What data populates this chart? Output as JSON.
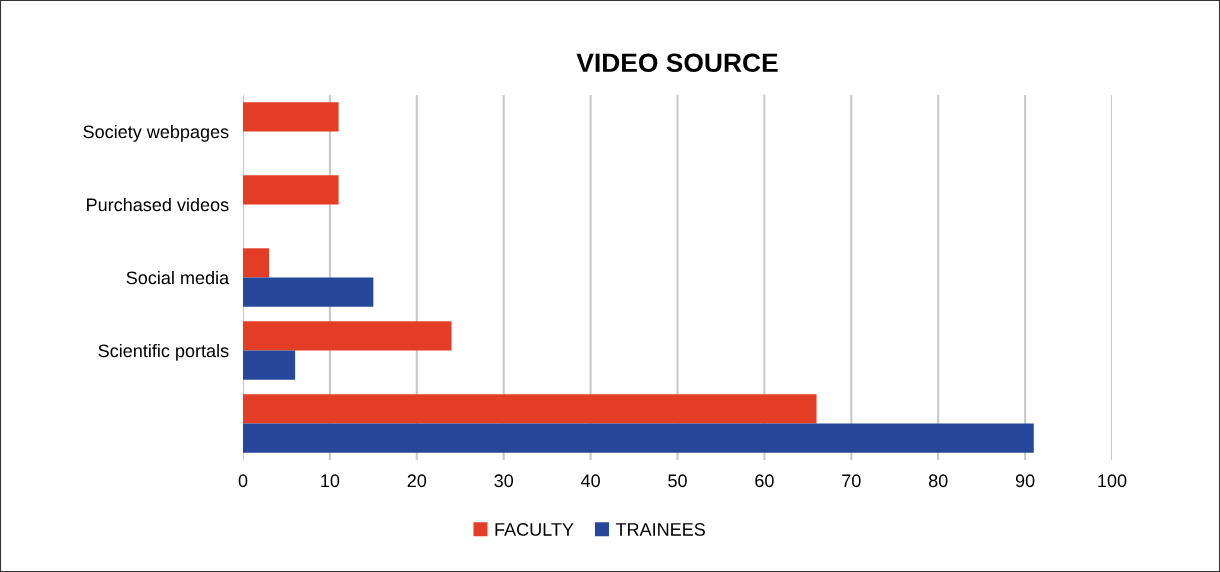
{
  "chart_data": {
    "type": "bar",
    "orientation": "horizontal",
    "title": "VIDEO SOURCE",
    "categories": [
      "Society webpages",
      "Purchased videos",
      "Social media",
      "Scientific portals",
      null
    ],
    "series": [
      {
        "name": "FACULTY",
        "color": "#e43d26",
        "values": [
          11,
          11,
          3,
          24,
          66
        ]
      },
      {
        "name": "TRAINEES",
        "color": "#27479a",
        "values": [
          null,
          null,
          15,
          6,
          91
        ]
      }
    ],
    "xlim": [
      0,
      100
    ],
    "xticks": [
      0,
      10,
      20,
      30,
      40,
      50,
      60,
      70,
      80,
      90,
      100
    ],
    "grid": "x",
    "legend": "bottom"
  }
}
